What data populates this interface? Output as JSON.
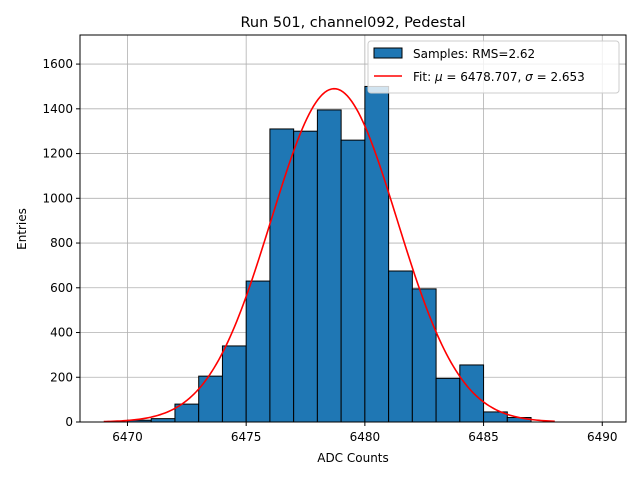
{
  "chart_data": {
    "type": "bar",
    "title": "Run 501, channel092, Pedestal",
    "xlabel": "ADC Counts",
    "ylabel": "Entries",
    "xlim": [
      6468,
      6491
    ],
    "ylim": [
      0,
      1730
    ],
    "grid": true,
    "legend_position": "top-right",
    "x_ticks": [
      6470,
      6475,
      6480,
      6485,
      6490
    ],
    "y_ticks": [
      0,
      200,
      400,
      600,
      800,
      1000,
      1200,
      1400,
      1600
    ],
    "histogram": {
      "name": "Samples: RMS=2.62",
      "color": "#1f77b4",
      "edge_color": "#000000",
      "bins": [
        {
          "x0": 6470,
          "x1": 6471,
          "value": 8
        },
        {
          "x0": 6471,
          "x1": 6472,
          "value": 15
        },
        {
          "x0": 6472,
          "x1": 6473,
          "value": 80
        },
        {
          "x0": 6473,
          "x1": 6474,
          "value": 205
        },
        {
          "x0": 6474,
          "x1": 6475,
          "value": 340
        },
        {
          "x0": 6475,
          "x1": 6476,
          "value": 630
        },
        {
          "x0": 6476,
          "x1": 6477,
          "value": 1310
        },
        {
          "x0": 6477,
          "x1": 6478,
          "value": 1300
        },
        {
          "x0": 6478,
          "x1": 6479,
          "value": 1395
        },
        {
          "x0": 6479,
          "x1": 6480,
          "value": 1260
        },
        {
          "x0": 6480,
          "x1": 6481,
          "value": 1500
        },
        {
          "x0": 6481,
          "x1": 6482,
          "value": 675
        },
        {
          "x0": 6482,
          "x1": 6483,
          "value": 595
        },
        {
          "x0": 6483,
          "x1": 6484,
          "value": 195
        },
        {
          "x0": 6484,
          "x1": 6485,
          "value": 255
        },
        {
          "x0": 6485,
          "x1": 6486,
          "value": 45
        },
        {
          "x0": 6486,
          "x1": 6487,
          "value": 20
        }
      ]
    },
    "fit": {
      "name_prefix": "Fit: ",
      "mu_symbol": "μ",
      "mu_text": " = 6478.707, ",
      "sigma_symbol": "σ",
      "sigma_text": " = 2.653",
      "color": "#ff0000",
      "mu": 6478.707,
      "sigma": 2.653,
      "amplitude": 1490,
      "x_range": [
        6469,
        6488
      ]
    }
  }
}
